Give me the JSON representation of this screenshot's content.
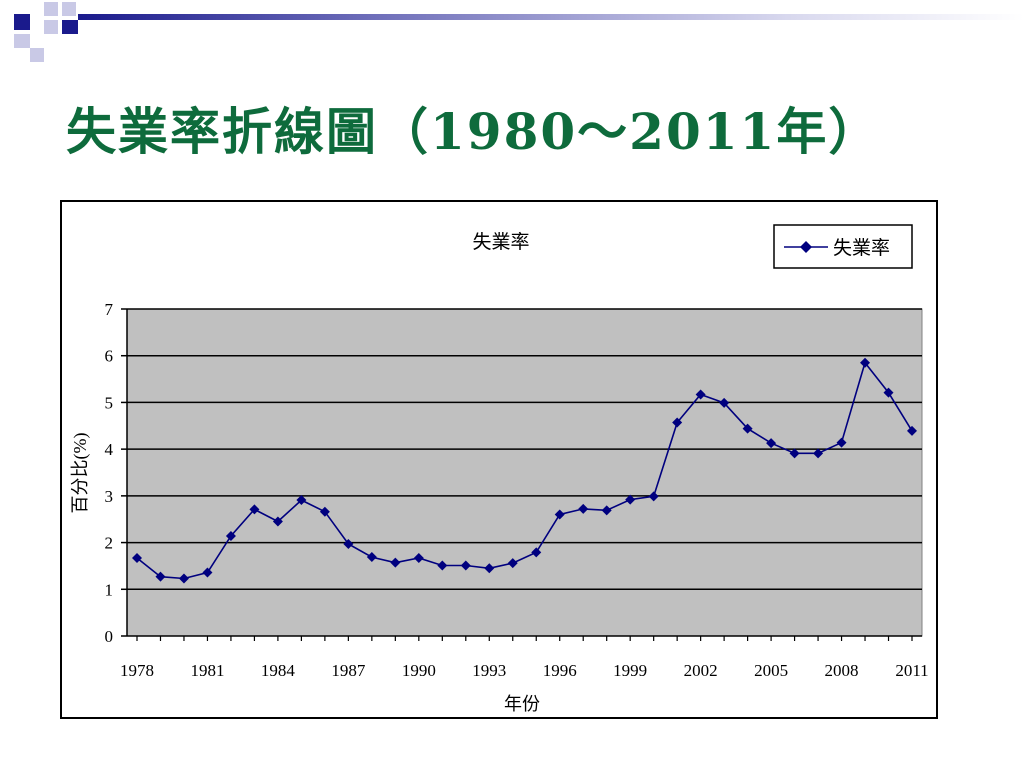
{
  "slide": {
    "title": "失業率折線圖（1980～2011年）",
    "title_color": "#0e6b3c",
    "accent_color": "#1a1a8c"
  },
  "chart_data": {
    "type": "line",
    "title": "失業率",
    "xlabel": "年份",
    "ylabel": "百分比(%)",
    "legend": "top-right",
    "grid": true,
    "ylim": [
      0,
      7
    ],
    "xlim": [
      1978,
      2011
    ],
    "yticks": [
      "0",
      "1",
      "2",
      "3",
      "4",
      "5",
      "6",
      "7"
    ],
    "xticks": [
      "1978",
      "1981",
      "1984",
      "1987",
      "1990",
      "1993",
      "1996",
      "1999",
      "2002",
      "2005",
      "2008",
      "2011"
    ],
    "series": [
      {
        "name": "失業率",
        "color": "#00007f",
        "marker": "diamond",
        "x": [
          1978,
          1979,
          1980,
          1981,
          1982,
          1983,
          1984,
          1985,
          1986,
          1987,
          1988,
          1989,
          1990,
          1991,
          1992,
          1993,
          1994,
          1995,
          1996,
          1997,
          1998,
          1999,
          2000,
          2001,
          2002,
          2003,
          2004,
          2005,
          2006,
          2007,
          2008,
          2009,
          2010,
          2011
        ],
        "values": [
          1.67,
          1.27,
          1.23,
          1.36,
          2.14,
          2.71,
          2.45,
          2.91,
          2.66,
          1.97,
          1.69,
          1.57,
          1.67,
          1.51,
          1.51,
          1.45,
          1.56,
          1.79,
          2.6,
          2.72,
          2.69,
          2.92,
          2.99,
          4.57,
          5.17,
          4.99,
          4.44,
          4.13,
          3.91,
          3.91,
          4.14,
          5.85,
          5.21,
          4.39
        ]
      }
    ]
  }
}
